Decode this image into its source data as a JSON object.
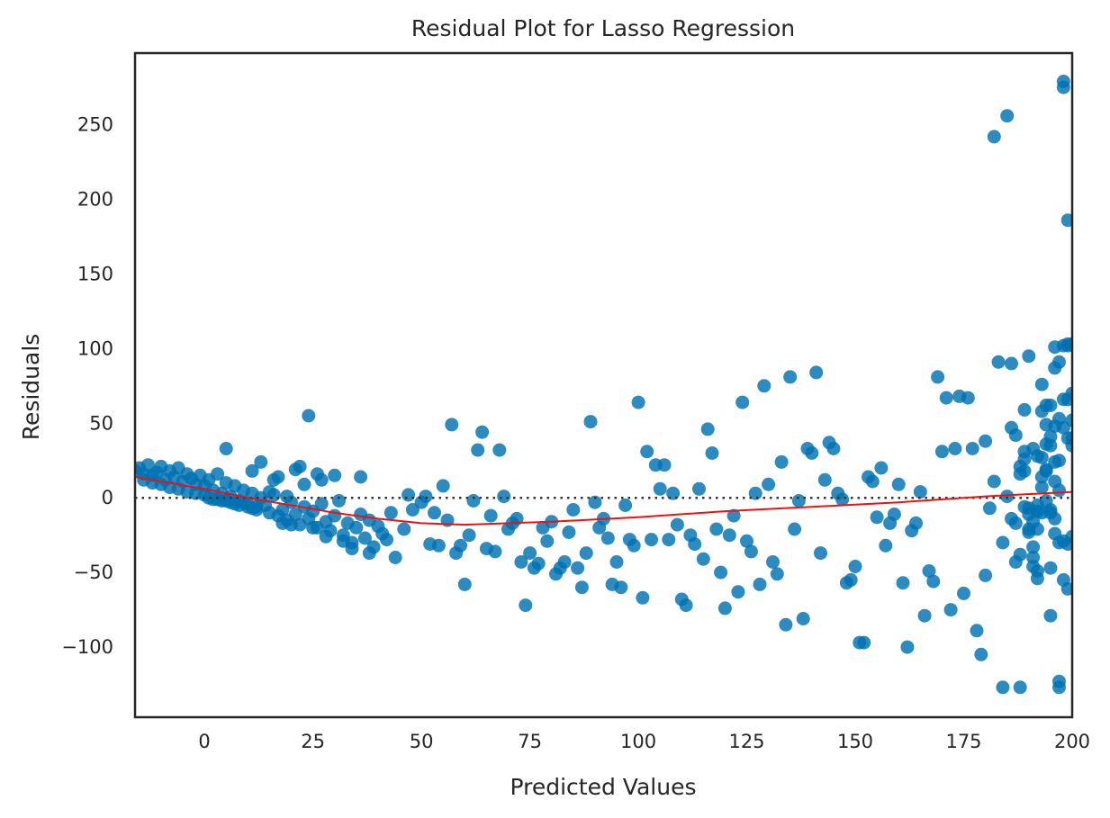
{
  "chart_data": {
    "type": "scatter",
    "title": "Residual Plot for Lasso Regression",
    "xlabel": "Predicted Values",
    "ylabel": "Residuals",
    "xlim": [
      -16,
      200
    ],
    "ylim": [
      -147,
      298
    ],
    "x_ticks": [
      0,
      25,
      50,
      75,
      100,
      125,
      150,
      175,
      200
    ],
    "y_ticks": [
      -100,
      -50,
      0,
      50,
      100,
      150,
      200,
      250
    ],
    "y_tick_labels": [
      "−100",
      "−50",
      "0",
      "50",
      "100",
      "150",
      "200",
      "250"
    ],
    "grid": false,
    "legend": "none",
    "colors": {
      "points": "#0072B2",
      "fit_line": "#ee1111",
      "zero_line": "#333333",
      "frame": "#262626"
    },
    "zero_line": {
      "y": 0,
      "style": "dotted"
    },
    "fit_line": {
      "x": [
        -16,
        0,
        10,
        20,
        30,
        40,
        50,
        60,
        70,
        80,
        100,
        120,
        140,
        160,
        180,
        200
      ],
      "y": [
        14,
        6,
        0,
        -5,
        -10,
        -14,
        -17,
        -18,
        -17,
        -16,
        -13,
        -9,
        -6,
        -3,
        1,
        4
      ]
    },
    "points": [
      [
        -16,
        18
      ],
      [
        -15,
        20
      ],
      [
        -14,
        16
      ],
      [
        -13,
        22
      ],
      [
        -12,
        15
      ],
      [
        -11,
        17
      ],
      [
        -10,
        21
      ],
      [
        -9,
        12
      ],
      [
        -8,
        18
      ],
      [
        -7,
        14
      ],
      [
        -6,
        20
      ],
      [
        -5,
        11
      ],
      [
        -4,
        16
      ],
      [
        -3,
        13
      ],
      [
        -2,
        9
      ],
      [
        -1,
        15
      ],
      [
        0,
        8
      ],
      [
        1,
        12
      ],
      [
        2,
        5
      ],
      [
        3,
        16
      ],
      [
        4,
        3
      ],
      [
        5,
        10
      ],
      [
        6,
        1
      ],
      [
        7,
        8
      ],
      [
        8,
        -2
      ],
      [
        9,
        5
      ],
      [
        10,
        -4
      ],
      [
        11,
        3
      ],
      [
        12,
        -6
      ],
      [
        13,
        0
      ],
      [
        -12,
        10
      ],
      [
        -8,
        7
      ],
      [
        -4,
        4
      ],
      [
        0,
        2
      ],
      [
        2,
        -1
      ],
      [
        4,
        -2
      ],
      [
        6,
        -3
      ],
      [
        8,
        -5
      ],
      [
        10,
        -6
      ],
      [
        12,
        -8
      ],
      [
        -14,
        12
      ],
      [
        -10,
        9
      ],
      [
        -6,
        6
      ],
      [
        -2,
        3
      ],
      [
        1,
        0
      ],
      [
        3,
        -1
      ],
      [
        5,
        -2
      ],
      [
        7,
        -4
      ],
      [
        9,
        -3
      ],
      [
        11,
        -7
      ],
      [
        14,
        -5
      ],
      [
        15,
        -10
      ],
      [
        16,
        2
      ],
      [
        17,
        -12
      ],
      [
        18,
        -8
      ],
      [
        19,
        -15
      ],
      [
        20,
        -3
      ],
      [
        21,
        -11
      ],
      [
        22,
        -18
      ],
      [
        23,
        -6
      ],
      [
        24,
        -14
      ],
      [
        25,
        -9
      ],
      [
        26,
        -20
      ],
      [
        27,
        -4
      ],
      [
        28,
        -16
      ],
      [
        29,
        -22
      ],
      [
        30,
        -12
      ],
      [
        31,
        -2
      ],
      [
        32,
        -25
      ],
      [
        33,
        -17
      ],
      [
        34,
        -30
      ],
      [
        35,
        -20
      ],
      [
        36,
        -11
      ],
      [
        37,
        -27
      ],
      [
        38,
        -15
      ],
      [
        39,
        -33
      ],
      [
        40,
        -19
      ],
      [
        41,
        -24
      ],
      [
        42,
        -28
      ],
      [
        43,
        -10
      ],
      [
        15,
        4
      ],
      [
        17,
        14
      ],
      [
        19,
        1
      ],
      [
        21,
        19
      ],
      [
        23,
        9
      ],
      [
        11,
        18
      ],
      [
        13,
        24
      ],
      [
        5,
        33
      ],
      [
        24,
        55
      ],
      [
        26,
        16
      ],
      [
        22,
        21
      ],
      [
        27,
        12
      ],
      [
        30,
        15
      ],
      [
        36,
        14
      ],
      [
        16,
        12
      ],
      [
        18,
        -17
      ],
      [
        20,
        -18
      ],
      [
        25,
        -20
      ],
      [
        28,
        -26
      ],
      [
        32,
        -29
      ],
      [
        34,
        -34
      ],
      [
        38,
        -37
      ],
      [
        44,
        -40
      ],
      [
        46,
        -21
      ],
      [
        48,
        -8
      ],
      [
        50,
        -3
      ],
      [
        52,
        -31
      ],
      [
        54,
        -32
      ],
      [
        47,
        2
      ],
      [
        51,
        1
      ],
      [
        53,
        -10
      ],
      [
        55,
        8
      ],
      [
        56,
        -15
      ],
      [
        57,
        49
      ],
      [
        58,
        -37
      ],
      [
        59,
        -32
      ],
      [
        60,
        -58
      ],
      [
        61,
        -25
      ],
      [
        62,
        -2
      ],
      [
        63,
        32
      ],
      [
        64,
        44
      ],
      [
        65,
        -34
      ],
      [
        66,
        -12
      ],
      [
        67,
        -36
      ],
      [
        68,
        32
      ],
      [
        69,
        1
      ],
      [
        70,
        -21
      ],
      [
        71,
        -17
      ],
      [
        72,
        -14
      ],
      [
        73,
        -43
      ],
      [
        74,
        -72
      ],
      [
        75,
        -37
      ],
      [
        76,
        -47
      ],
      [
        77,
        -44
      ],
      [
        78,
        -20
      ],
      [
        79,
        -29
      ],
      [
        80,
        -16
      ],
      [
        81,
        -51
      ],
      [
        82,
        -47
      ],
      [
        83,
        -43
      ],
      [
        84,
        -23
      ],
      [
        85,
        -8
      ],
      [
        86,
        -47
      ],
      [
        87,
        -60
      ],
      [
        88,
        -37
      ],
      [
        89,
        51
      ],
      [
        90,
        -3
      ],
      [
        91,
        -20
      ],
      [
        92,
        -14
      ],
      [
        93,
        -27
      ],
      [
        94,
        -58
      ],
      [
        95,
        -43
      ],
      [
        96,
        -60
      ],
      [
        97,
        -5
      ],
      [
        98,
        -28
      ],
      [
        99,
        -32
      ],
      [
        100,
        64
      ],
      [
        101,
        -67
      ],
      [
        102,
        31
      ],
      [
        103,
        -28
      ],
      [
        104,
        22
      ],
      [
        105,
        6
      ],
      [
        106,
        22
      ],
      [
        107,
        -28
      ],
      [
        108,
        3
      ],
      [
        109,
        -18
      ],
      [
        110,
        -68
      ],
      [
        111,
        -72
      ],
      [
        112,
        -25
      ],
      [
        113,
        -31
      ],
      [
        114,
        6
      ],
      [
        115,
        -41
      ],
      [
        116,
        46
      ],
      [
        117,
        30
      ],
      [
        118,
        -21
      ],
      [
        119,
        -50
      ],
      [
        120,
        -74
      ],
      [
        121,
        -25
      ],
      [
        122,
        -12
      ],
      [
        123,
        -63
      ],
      [
        124,
        64
      ],
      [
        125,
        -29
      ],
      [
        126,
        -36
      ],
      [
        127,
        3
      ],
      [
        128,
        -58
      ],
      [
        129,
        75
      ],
      [
        130,
        9
      ],
      [
        131,
        -43
      ],
      [
        132,
        -51
      ],
      [
        133,
        24
      ],
      [
        134,
        -85
      ],
      [
        135,
        81
      ],
      [
        136,
        -21
      ],
      [
        137,
        -2
      ],
      [
        138,
        -81
      ],
      [
        139,
        33
      ],
      [
        140,
        30
      ],
      [
        141,
        84
      ],
      [
        142,
        -37
      ],
      [
        143,
        12
      ],
      [
        144,
        37
      ],
      [
        145,
        33
      ],
      [
        146,
        3
      ],
      [
        147,
        -1
      ],
      [
        148,
        -57
      ],
      [
        149,
        -55
      ],
      [
        150,
        -46
      ],
      [
        151,
        -97
      ],
      [
        152,
        -97
      ],
      [
        153,
        14
      ],
      [
        154,
        11
      ],
      [
        155,
        -13
      ],
      [
        156,
        20
      ],
      [
        157,
        -32
      ],
      [
        158,
        -17
      ],
      [
        159,
        -11
      ],
      [
        160,
        9
      ],
      [
        161,
        -57
      ],
      [
        162,
        -100
      ],
      [
        163,
        -22
      ],
      [
        164,
        -17
      ],
      [
        165,
        4
      ],
      [
        166,
        -79
      ],
      [
        167,
        -49
      ],
      [
        168,
        -56
      ],
      [
        169,
        81
      ],
      [
        170,
        31
      ],
      [
        171,
        67
      ],
      [
        172,
        -75
      ],
      [
        173,
        33
      ],
      [
        174,
        68
      ],
      [
        175,
        -64
      ],
      [
        176,
        67
      ],
      [
        177,
        33
      ],
      [
        178,
        -89
      ],
      [
        179,
        -105
      ],
      [
        180,
        38
      ],
      [
        181,
        -7
      ],
      [
        182,
        242
      ],
      [
        183,
        91
      ],
      [
        184,
        -127
      ],
      [
        185,
        256
      ],
      [
        186,
        90
      ],
      [
        187,
        -17
      ],
      [
        188,
        -127
      ],
      [
        189,
        59
      ],
      [
        190,
        95
      ],
      [
        191,
        -40
      ],
      [
        192,
        -49
      ],
      [
        193,
        76
      ],
      [
        194,
        18
      ],
      [
        195,
        -79
      ],
      [
        196,
        11
      ],
      [
        197,
        -127
      ],
      [
        198,
        275
      ],
      [
        199,
        186
      ],
      [
        196,
        101
      ],
      [
        197,
        -123
      ],
      [
        198,
        279
      ],
      [
        199,
        103
      ],
      [
        200,
        103
      ],
      [
        180,
        -52
      ],
      [
        182,
        11
      ],
      [
        184,
        -30
      ],
      [
        185,
        1
      ],
      [
        186,
        -14
      ],
      [
        187,
        -43
      ],
      [
        188,
        -38
      ],
      [
        189,
        18
      ],
      [
        190,
        -23
      ],
      [
        191,
        -33
      ],
      [
        192,
        -5
      ],
      [
        193,
        -10
      ],
      [
        194,
        49
      ],
      [
        195,
        35
      ],
      [
        196,
        48
      ],
      [
        197,
        25
      ],
      [
        198,
        47
      ],
      [
        199,
        40
      ],
      [
        200,
        52
      ],
      [
        188,
        21
      ],
      [
        189,
        26
      ],
      [
        190,
        -7
      ],
      [
        191,
        33
      ],
      [
        192,
        -54
      ],
      [
        193,
        58
      ],
      [
        194,
        62
      ],
      [
        195,
        -47
      ],
      [
        196,
        87
      ],
      [
        197,
        91
      ],
      [
        198,
        66
      ],
      [
        199,
        66
      ],
      [
        200,
        70
      ],
      [
        192,
        28
      ],
      [
        193,
        27
      ],
      [
        194,
        19
      ],
      [
        195,
        -10
      ],
      [
        196,
        -24
      ],
      [
        197,
        5
      ],
      [
        198,
        -29
      ],
      [
        199,
        -31
      ],
      [
        200,
        40
      ],
      [
        189,
        -6
      ],
      [
        190,
        -11
      ],
      [
        191,
        -16
      ],
      [
        192,
        -21
      ],
      [
        193,
        14
      ],
      [
        194,
        36
      ],
      [
        195,
        41
      ],
      [
        196,
        24
      ],
      [
        197,
        53
      ],
      [
        198,
        102
      ],
      [
        199,
        102
      ],
      [
        200,
        35
      ],
      [
        195,
        -8
      ],
      [
        196,
        -14
      ],
      [
        197,
        -30
      ],
      [
        198,
        -55
      ],
      [
        199,
        -61
      ],
      [
        200,
        -26
      ],
      [
        186,
        47
      ],
      [
        187,
        42
      ],
      [
        188,
        16
      ],
      [
        189,
        31
      ],
      [
        190,
        -21
      ],
      [
        191,
        -46
      ],
      [
        192,
        -9
      ],
      [
        193,
        7
      ],
      [
        194,
        -2
      ],
      [
        195,
        62
      ]
    ]
  }
}
